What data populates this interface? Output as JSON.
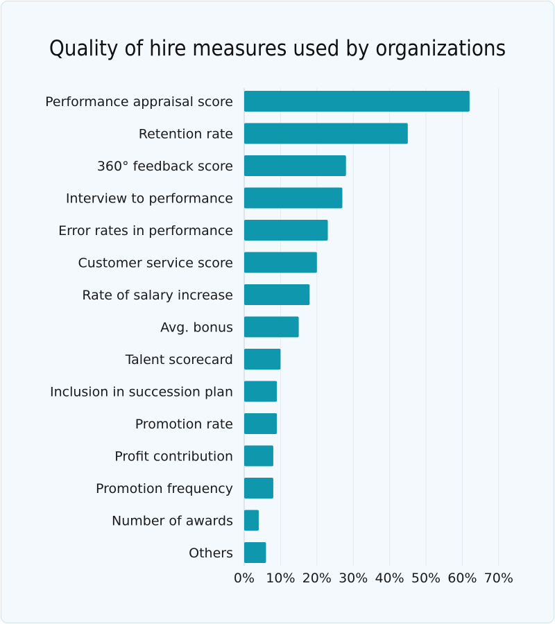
{
  "chart_data": {
    "type": "bar",
    "orientation": "horizontal",
    "title": "Quality of hire measures used by organizations",
    "categories": [
      "Performance appraisal score",
      "Retention rate",
      "360° feedback score",
      "Interview to performance",
      "Error rates in performance",
      "Customer service score",
      "Rate of salary increase",
      "Avg. bonus",
      "Talent scorecard",
      "Inclusion in succession plan",
      "Promotion rate",
      "Profit contribution",
      "Promotion frequency",
      "Number of awards",
      "Others"
    ],
    "values": [
      62,
      45,
      28,
      27,
      23,
      20,
      18,
      15,
      10,
      9,
      9,
      8,
      8,
      4,
      6
    ],
    "unit": "%",
    "xlim": [
      0,
      70
    ],
    "xticks": [
      "0%",
      "10%",
      "20%",
      "30%",
      "40%",
      "50%",
      "60%",
      "70%"
    ],
    "grid": true,
    "bar_color": "#0f97ae",
    "background": "#f4f9fd"
  }
}
